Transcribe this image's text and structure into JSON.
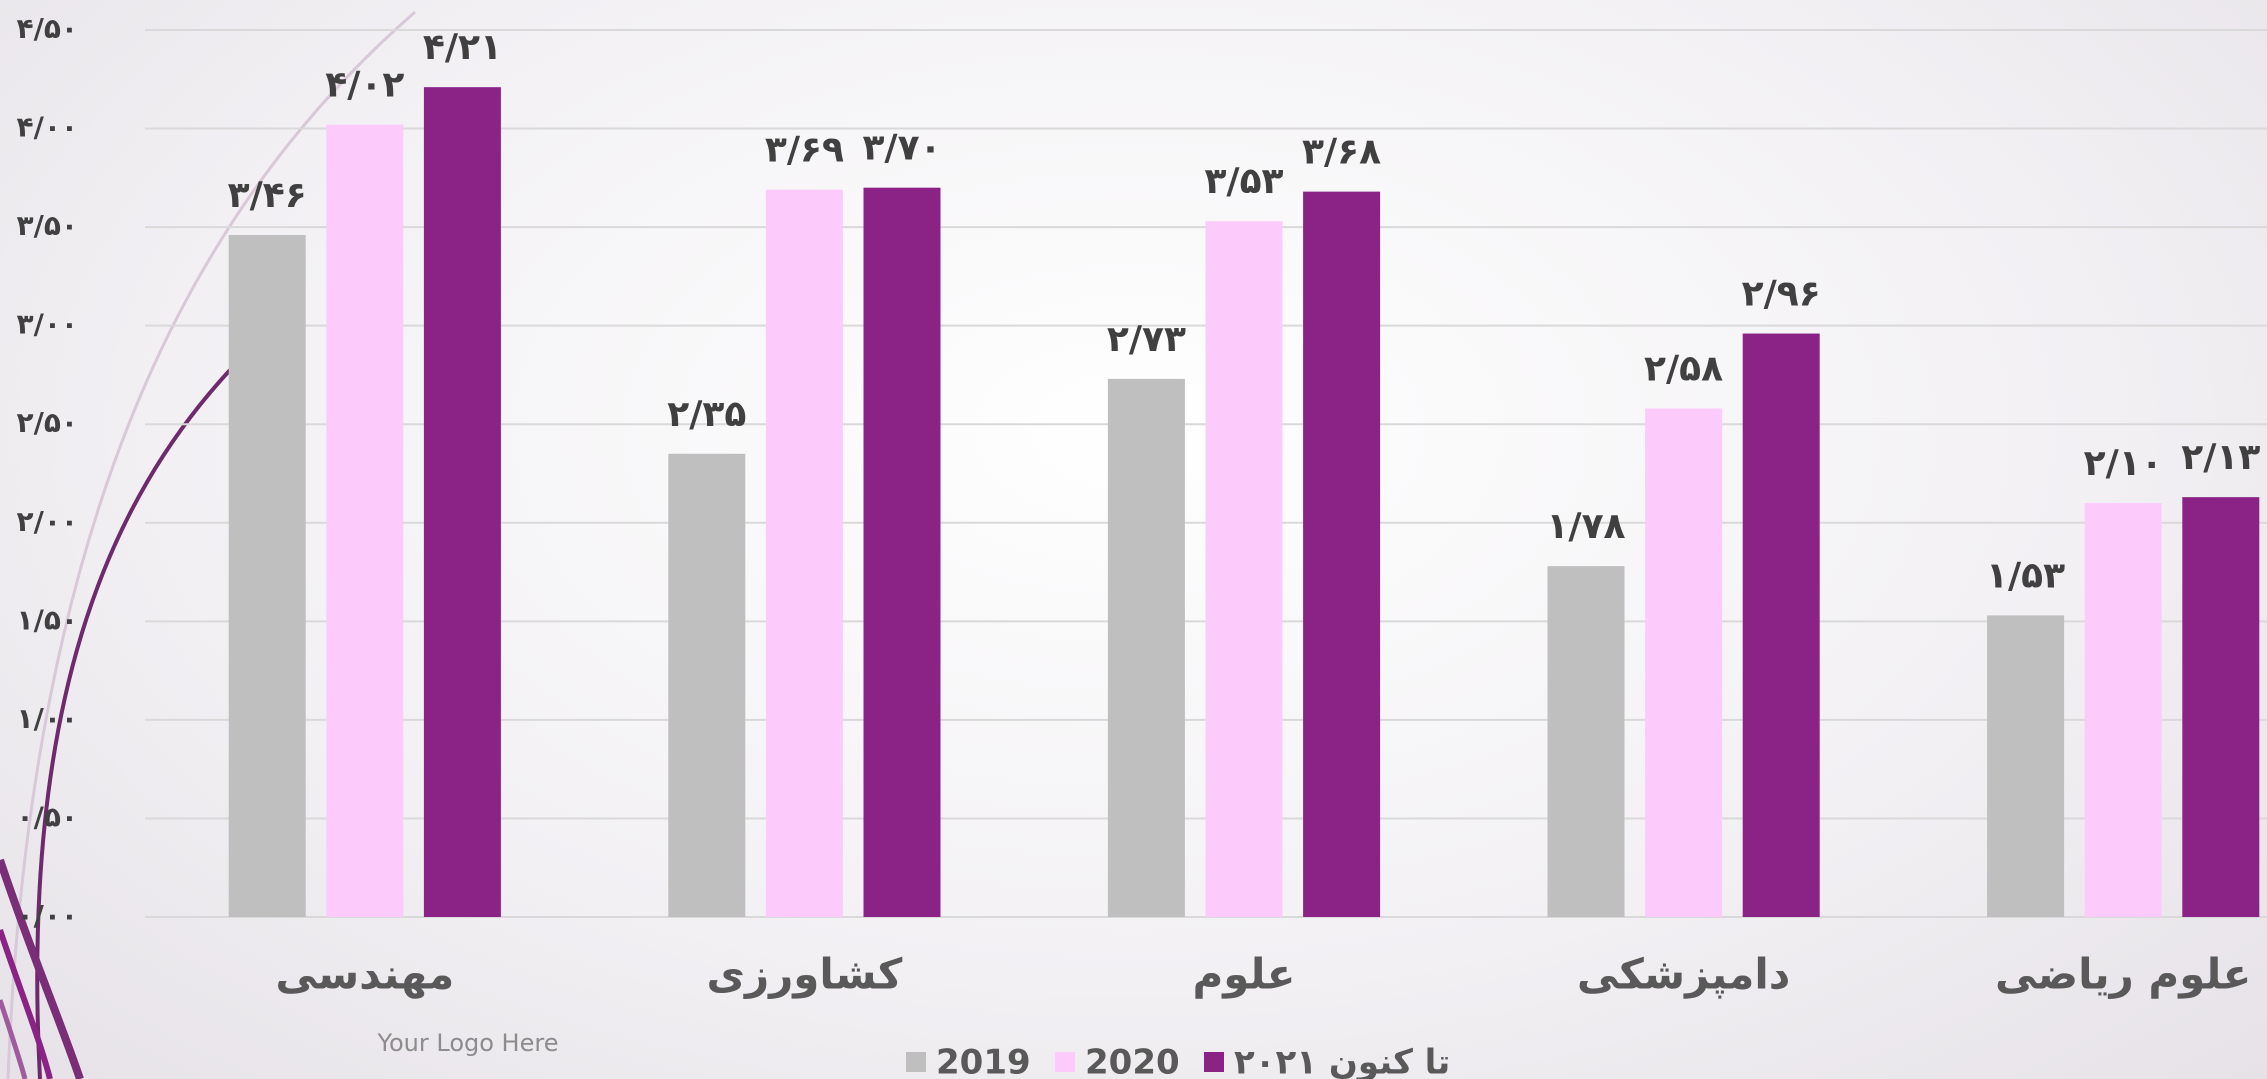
{
  "chart_data": {
    "type": "bar",
    "categories": [
      "مهندسی",
      "کشاورزی",
      "علوم",
      "دامپزشکی",
      "علوم ریاضی"
    ],
    "series": [
      {
        "name": "2019",
        "color": "#bfbfbf",
        "values": [
          3.46,
          2.35,
          2.73,
          1.78,
          1.53
        ],
        "value_labels": [
          "۳/۴۶",
          "۲/۳۵",
          "۲/۷۳",
          "۱/۷۸",
          "۱/۵۳"
        ]
      },
      {
        "name": "2020",
        "color": "#fccbfc",
        "values": [
          4.02,
          3.69,
          3.53,
          2.58,
          2.1
        ],
        "value_labels": [
          "۴/۰۲",
          "۳/۶۹",
          "۳/۵۳",
          "۲/۵۸",
          "۲/۱۰"
        ]
      },
      {
        "name": "۲۰۲۱ تا کنون",
        "color": "#8b2387",
        "values": [
          4.21,
          3.7,
          3.68,
          2.96,
          2.13
        ],
        "value_labels": [
          "۴/۲۱",
          "۳/۷۰",
          "۳/۶۸",
          "۲/۹۶",
          "۲/۱۳"
        ]
      }
    ],
    "ylim": [
      0,
      4.5
    ],
    "yticks": [
      {
        "value": 0,
        "label": "۰/۰۰"
      },
      {
        "value": 0.5,
        "label": "۰/۵۰"
      },
      {
        "value": 1,
        "label": "۱/۰۰"
      },
      {
        "value": 1.5,
        "label": "۱/۵۰"
      },
      {
        "value": 2,
        "label": "۲/۰۰"
      },
      {
        "value": 2.5,
        "label": "۲/۵۰"
      },
      {
        "value": 3,
        "label": "۳/۰۰"
      },
      {
        "value": 3.5,
        "label": "۳/۵۰"
      },
      {
        "value": 4,
        "label": "۴/۰۰"
      },
      {
        "value": 4.5,
        "label": "۴/۵۰"
      }
    ],
    "grid": true,
    "legend": "bottom"
  },
  "footer": {
    "logo": "Your Logo Here"
  }
}
